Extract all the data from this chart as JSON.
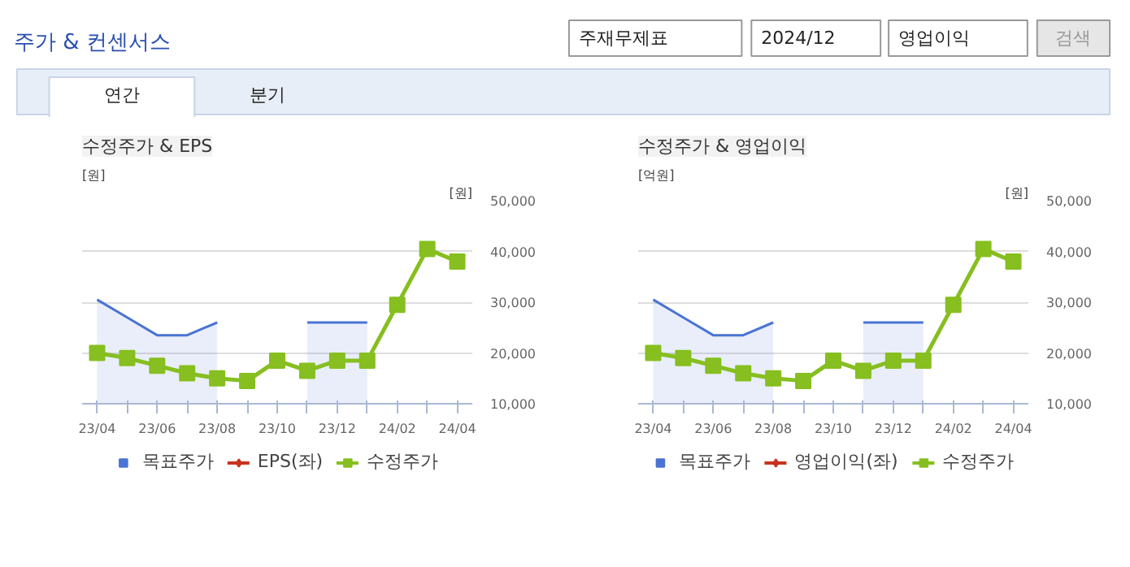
{
  "chart_data": [
    {
      "type": "other",
      "title": "주가 & 컨센서스",
      "annotations": [
        "주재무제표",
        "2024/12",
        "영업이익",
        "검색",
        "연간",
        "분기"
      ]
    },
    {
      "type": "line",
      "title": "수정주가 & EPS",
      "ylabel": "[원]",
      "y2label": "[원]",
      "categories": [
        "23/04",
        null,
        "23/06",
        null,
        "23/08",
        null,
        "23/10",
        null,
        "23/12",
        null,
        "24/02",
        null,
        "24/04"
      ],
      "y2lim": [
        10000,
        50000
      ],
      "y2ticks": [
        {
          "value": 10000,
          "label": "10,000"
        },
        {
          "value": 20000,
          "label": "20,000"
        },
        {
          "value": 30000,
          "label": "30,000"
        },
        {
          "value": 40000,
          "label": "40,000"
        },
        {
          "value": 50000,
          "label": "50,000"
        }
      ],
      "grid": "y",
      "legend": "bottom",
      "series": [
        {
          "name": "목표주가",
          "type": "area",
          "axis": "y2",
          "color": "#4a74d4",
          "values": [
            30500,
            27000,
            23500,
            23500,
            26000,
            null,
            null,
            26000,
            26000,
            26000,
            null,
            null,
            null
          ]
        },
        {
          "name": "EPS(좌)",
          "type": "line",
          "color": "#c8321e",
          "marker": "diamond",
          "values": [
            null,
            null,
            null,
            null,
            null,
            null,
            null,
            null,
            null,
            null,
            null,
            null,
            null
          ]
        },
        {
          "name": "수정주가",
          "type": "line",
          "axis": "y2",
          "color": "#86bf1f",
          "marker": "square",
          "values": [
            20000,
            19000,
            17500,
            16000,
            15000,
            14500,
            18500,
            16500,
            18500,
            18500,
            29500,
            40500,
            38000
          ]
        }
      ]
    },
    {
      "type": "line",
      "title": "수정주가 & 영업이익",
      "ylabel": "[억원]",
      "y2label": "[원]",
      "categories": [
        "23/04",
        null,
        "23/06",
        null,
        "23/08",
        null,
        "23/10",
        null,
        "23/12",
        null,
        "24/02",
        null,
        "24/04"
      ],
      "y2lim": [
        10000,
        50000
      ],
      "y2ticks": [
        {
          "value": 10000,
          "label": "10,000"
        },
        {
          "value": 20000,
          "label": "20,000"
        },
        {
          "value": 30000,
          "label": "30,000"
        },
        {
          "value": 40000,
          "label": "40,000"
        },
        {
          "value": 50000,
          "label": "50,000"
        }
      ],
      "grid": "y",
      "legend": "bottom",
      "series": [
        {
          "name": "목표주가",
          "type": "area",
          "axis": "y2",
          "color": "#4a74d4",
          "values": [
            30500,
            27000,
            23500,
            23500,
            26000,
            null,
            null,
            26000,
            26000,
            26000,
            null,
            null,
            null
          ]
        },
        {
          "name": "영업이익(좌)",
          "type": "line",
          "color": "#c8321e",
          "marker": "diamond",
          "values": [
            null,
            null,
            null,
            null,
            null,
            null,
            null,
            null,
            null,
            null,
            null,
            null,
            null
          ]
        },
        {
          "name": "수정주가",
          "type": "line",
          "axis": "y2",
          "color": "#86bf1f",
          "marker": "square",
          "values": [
            20000,
            19000,
            17500,
            16000,
            15000,
            14500,
            18500,
            16500,
            18500,
            18500,
            29500,
            40500,
            38000
          ]
        }
      ]
    }
  ]
}
